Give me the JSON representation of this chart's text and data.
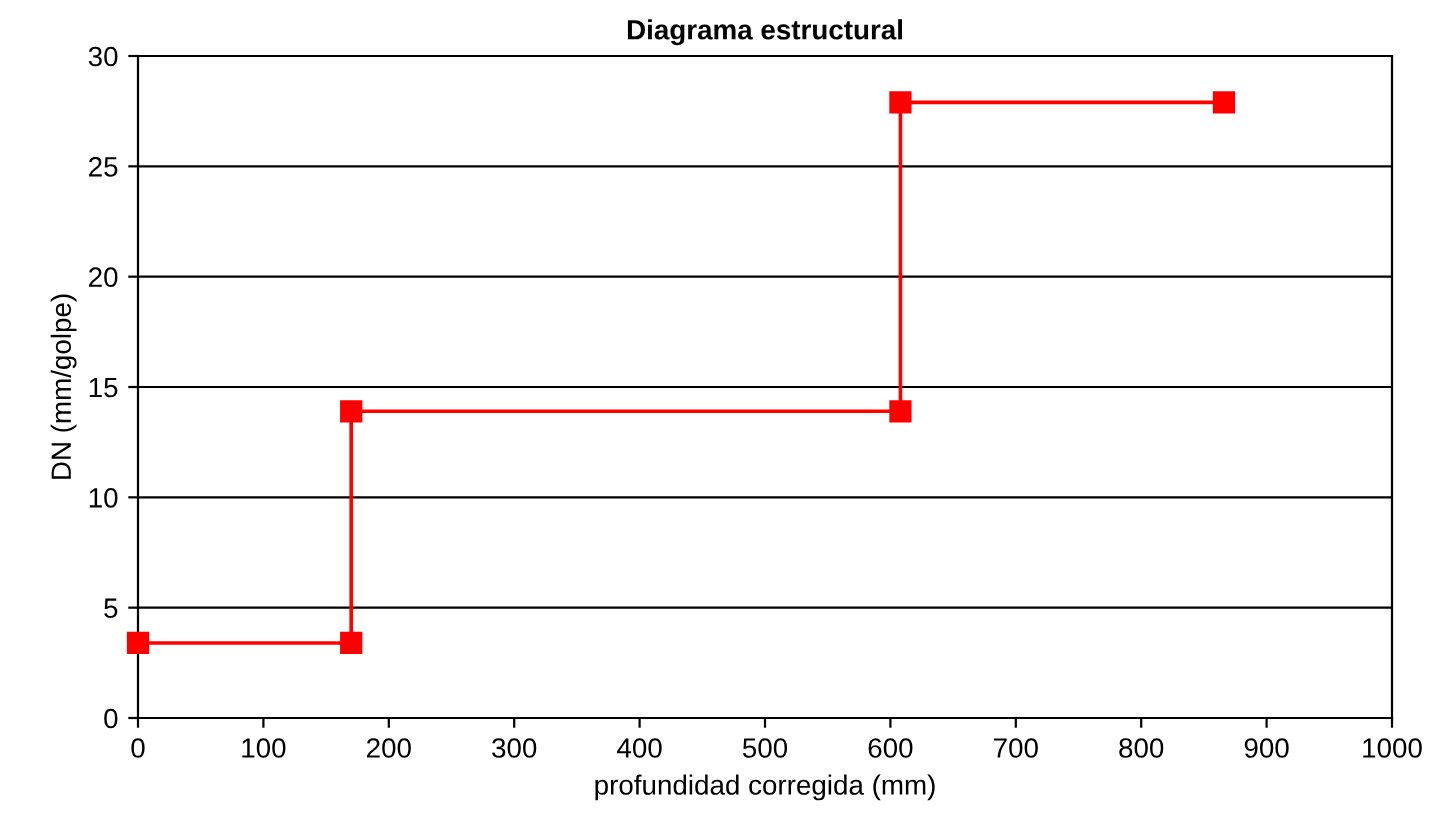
{
  "chart_data": {
    "type": "line",
    "title": "Diagrama estructural",
    "xlabel": "profundidad corregida (mm)",
    "ylabel": "DN (mm/golpe)",
    "x": [
      0,
      170,
      170,
      608,
      608,
      866
    ],
    "series": [
      {
        "color": "#ff0000",
        "values": [
          3.4,
          3.4,
          13.9,
          13.9,
          27.9,
          27.9
        ]
      }
    ],
    "xlim": [
      0,
      1000
    ],
    "xticks": [
      0,
      100,
      200,
      300,
      400,
      500,
      600,
      700,
      800,
      900,
      1000
    ],
    "ylim": [
      0,
      30
    ],
    "yticks": [
      0,
      5,
      10,
      15,
      20,
      25,
      30
    ],
    "grid": "y",
    "legend": false,
    "marker": "square",
    "line_style": "solid"
  }
}
